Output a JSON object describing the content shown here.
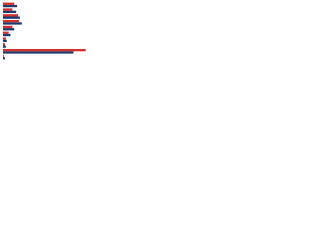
{
  "chart_data": {
    "type": "bar",
    "orientation": "horizontal",
    "categories": [
      null,
      null,
      null,
      null,
      null,
      null,
      null,
      null,
      null,
      null
    ],
    "series": [
      {
        "color": "#1d3c6e",
        "values": [
          15,
          14,
          18,
          20,
          12,
          8,
          4,
          3,
          75,
          2
        ]
      },
      {
        "color": "#d0312d",
        "values": [
          12,
          10,
          16,
          17,
          10,
          6,
          3,
          2,
          88,
          1
        ]
      }
    ],
    "xlim": [
      0,
      100
    ]
  }
}
